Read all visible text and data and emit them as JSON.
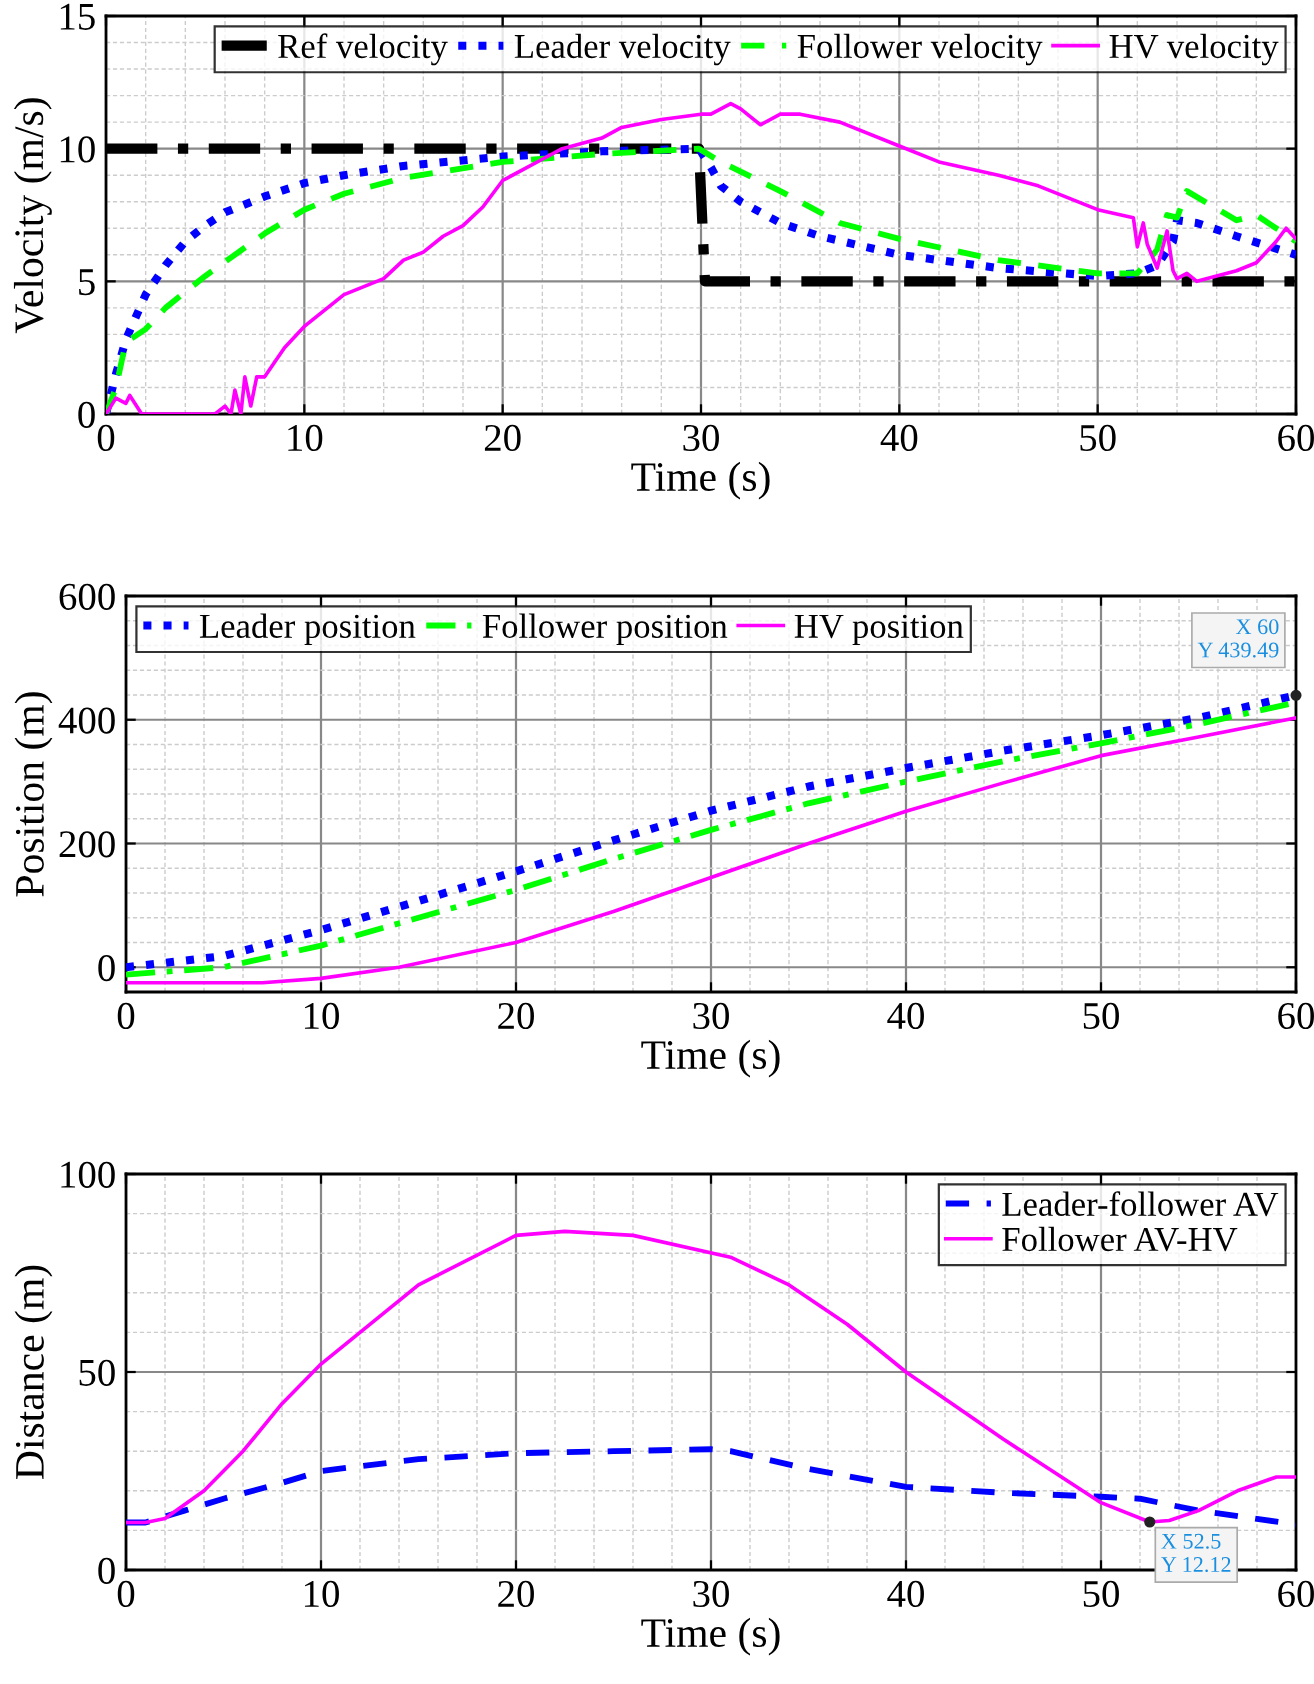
{
  "chart_data": [
    {
      "type": "line",
      "xlabel": "Time (s)",
      "ylabel": "Velocity (m/s)",
      "xlim": [
        0,
        60
      ],
      "ylim": [
        0,
        15
      ],
      "xticks": [
        0,
        10,
        20,
        30,
        40,
        50,
        60
      ],
      "yticks": [
        0,
        5,
        10,
        15
      ],
      "grid": true,
      "legend": "top right",
      "marker": "none",
      "series": [
        {
          "name": "Ref velocity",
          "color": "#000000",
          "line_style": "dashdot",
          "x": [
            0,
            29.9,
            30.2,
            60
          ],
          "values": [
            10,
            10,
            5,
            5
          ]
        },
        {
          "name": "Leader velocity",
          "color": "#0000ff",
          "line_style": "dotted",
          "x": [
            0,
            0.5,
            1,
            2,
            3,
            4,
            5,
            6,
            8,
            10,
            12,
            15,
            20,
            25,
            29.9,
            30.5,
            31,
            32,
            34,
            36,
            40,
            45,
            50,
            52,
            53,
            53.8,
            54,
            55,
            57,
            60
          ],
          "values": [
            0,
            1.5,
            2.8,
            4.5,
            5.6,
            6.5,
            7.1,
            7.6,
            8.2,
            8.7,
            9.0,
            9.35,
            9.7,
            9.9,
            10,
            9.3,
            8.6,
            8.0,
            7.2,
            6.7,
            6.0,
            5.5,
            5.2,
            5.3,
            5.6,
            6.5,
            7.3,
            7.2,
            6.7,
            6.0
          ]
        },
        {
          "name": "Follower velocity",
          "color": "#00ff00",
          "line_style": "dashed",
          "x": [
            0,
            0.5,
            1,
            2,
            3,
            5,
            8,
            10,
            12,
            15,
            20,
            25,
            29.9,
            31,
            34,
            37,
            40,
            45,
            50,
            52,
            53,
            53.5,
            54,
            54.5,
            57,
            58,
            60
          ],
          "values": [
            0,
            1,
            2.7,
            3.2,
            4.0,
            5.2,
            6.8,
            7.7,
            8.3,
            8.9,
            9.5,
            9.8,
            10,
            9.5,
            8.4,
            7.2,
            6.6,
            5.8,
            5.3,
            5.3,
            6.2,
            7.5,
            7.4,
            8.4,
            7.3,
            7.5,
            6.5
          ]
        },
        {
          "name": "HV velocity",
          "color": "#ff00ff",
          "line_style": "solid",
          "x": [
            0,
            0.5,
            1,
            1.2,
            1.8,
            5.5,
            6,
            6.3,
            6.5,
            6.8,
            7,
            7.3,
            7.6,
            8,
            9,
            10,
            12,
            14,
            15,
            16,
            17,
            18,
            19,
            20,
            21,
            22,
            23,
            25,
            26,
            28,
            30,
            30.5,
            31.5,
            32,
            33,
            34,
            35,
            37,
            40,
            42,
            45,
            47,
            50,
            51.8,
            52,
            52.3,
            52.5,
            53,
            53.5,
            53.8,
            54,
            54.5,
            55,
            57,
            58,
            59,
            59.5,
            60
          ],
          "values": [
            0,
            0.6,
            0.4,
            0.7,
            0,
            0,
            0.3,
            0,
            0.9,
            0,
            1.4,
            0.3,
            1.4,
            1.4,
            2.5,
            3.3,
            4.5,
            5.1,
            5.8,
            6.1,
            6.7,
            7.1,
            7.8,
            8.8,
            9.2,
            9.6,
            10.0,
            10.4,
            10.8,
            11.1,
            11.3,
            11.3,
            11.7,
            11.5,
            10.9,
            11.3,
            11.3,
            11.0,
            10.1,
            9.5,
            9.0,
            8.6,
            7.7,
            7.4,
            6.3,
            7.2,
            6.4,
            5.5,
            6.9,
            5.4,
            5.1,
            5.3,
            5.0,
            5.4,
            5.7,
            6.5,
            7.0,
            6.6
          ]
        }
      ]
    },
    {
      "type": "line",
      "xlabel": "Time (s)",
      "ylabel": "Position (m)",
      "xlim": [
        0,
        60
      ],
      "ylim": [
        -40,
        600
      ],
      "xticks": [
        0,
        10,
        20,
        30,
        40,
        50,
        60
      ],
      "yticks": [
        0,
        200,
        400,
        600
      ],
      "grid": true,
      "legend": "top left",
      "marker": "none",
      "annotations": [
        {
          "text": "X 60\nY 439.49",
          "x": 60,
          "y": 439.49
        }
      ],
      "series": [
        {
          "name": "Leader position",
          "color": "#0000ff",
          "line_style": "dotted",
          "x": [
            0,
            5,
            10,
            15,
            20,
            25,
            30,
            35,
            40,
            45,
            50,
            55,
            60
          ],
          "values": [
            0,
            18,
            60,
            107,
            155,
            205,
            253,
            292,
            322,
            350,
            375,
            403,
            439.49
          ]
        },
        {
          "name": "Follower position",
          "color": "#00ff00",
          "line_style": "dashdot",
          "x": [
            0,
            5,
            10,
            15,
            20,
            25,
            30,
            35,
            40,
            45,
            50,
            55,
            60
          ],
          "values": [
            -12,
            0,
            35,
            80,
            125,
            175,
            222,
            265,
            300,
            333,
            362,
            393,
            428
          ]
        },
        {
          "name": "HV position",
          "color": "#ff00ff",
          "line_style": "solid",
          "x": [
            0,
            7,
            10,
            14,
            20,
            25,
            30,
            35,
            40,
            45,
            50,
            55,
            60
          ],
          "values": [
            -25,
            -25,
            -18,
            0,
            40,
            90,
            145,
            200,
            252,
            298,
            342,
            372,
            403
          ]
        }
      ]
    },
    {
      "type": "line",
      "xlabel": "Time (s)",
      "ylabel": "Distance (m)",
      "xlim": [
        0,
        60
      ],
      "ylim": [
        0,
        100
      ],
      "xticks": [
        0,
        10,
        20,
        30,
        40,
        50,
        60
      ],
      "yticks": [
        0,
        50,
        100
      ],
      "grid": true,
      "legend": "top right",
      "marker": "none",
      "annotations": [
        {
          "text": "X 52.5\nY 12.12",
          "x": 52.5,
          "y": 12.12
        }
      ],
      "series": [
        {
          "name": "Leader-follower AV",
          "color": "#0000ff",
          "line_style": "dashed",
          "x": [
            0,
            1,
            3,
            5,
            8,
            10,
            15,
            20,
            25,
            30,
            31,
            35,
            40,
            45,
            50,
            52,
            55,
            60
          ],
          "values": [
            12,
            12,
            15,
            18,
            22,
            25,
            28,
            29.5,
            30,
            30.5,
            30,
            25.5,
            21,
            19.5,
            18.5,
            18,
            15,
            11.5
          ]
        },
        {
          "name": "Follower AV-HV",
          "color": "#ff00ff",
          "line_style": "solid",
          "x": [
            0,
            1,
            2,
            4,
            6,
            8,
            10,
            15,
            20,
            22.5,
            26,
            31,
            34,
            37,
            40,
            45,
            50,
            52.5,
            53.5,
            55,
            57,
            59,
            60
          ],
          "values": [
            12,
            12,
            13,
            20,
            30,
            42,
            52,
            72,
            84.5,
            85.5,
            84.5,
            79,
            72,
            62,
            50,
            33,
            17,
            12.12,
            12.5,
            15,
            20,
            23.5,
            23.5
          ]
        }
      ]
    }
  ]
}
